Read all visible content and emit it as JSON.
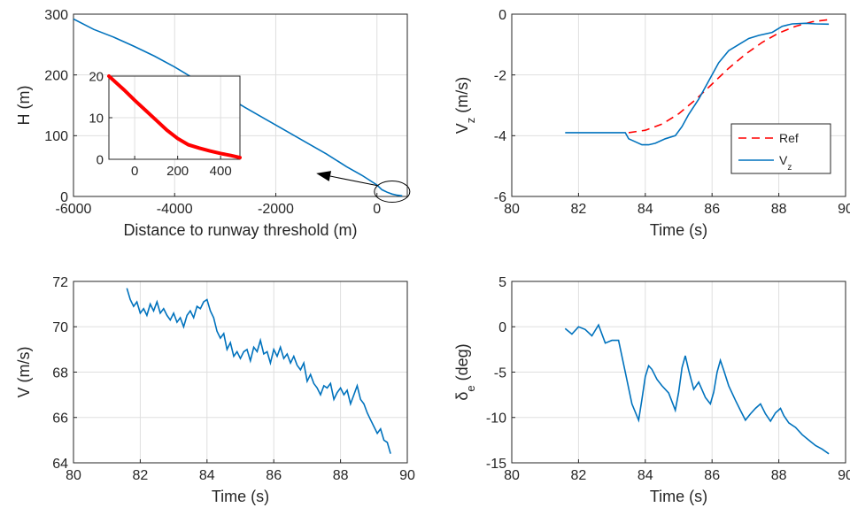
{
  "chart_data": [
    {
      "id": "altitude",
      "type": "line",
      "xlabel": "Distance to runway threshold (m)",
      "ylabel": "H (m)",
      "xlim": [
        -6000,
        600
      ],
      "ylim": [
        0,
        300
      ],
      "xticks": [
        -6000,
        -4000,
        -2000,
        0
      ],
      "yticks": [
        0,
        100,
        200,
        300
      ],
      "grid": true,
      "colors": {
        "main": "#0072bd",
        "inset": "#ff0000"
      },
      "series": [
        {
          "x": [
            -6000,
            -5600,
            -5200,
            -4800,
            -4400,
            -4000,
            -3800,
            -3600,
            -3400,
            -3000,
            -2600,
            -2200,
            -1800,
            -1400,
            -1000,
            -600,
            -300,
            0,
            100,
            200,
            300,
            400,
            500
          ],
          "y": [
            292,
            275,
            262,
            247,
            231,
            213,
            203,
            193,
            185,
            166,
            146,
            127,
            108,
            89,
            70,
            49,
            35,
            19,
            11,
            7,
            4,
            2,
            1
          ]
        }
      ],
      "inset": {
        "xlim": [
          -120,
          490
        ],
        "ylim": [
          0,
          20
        ],
        "xticks": [
          0,
          200,
          400
        ],
        "yticks": [
          0,
          10,
          20
        ],
        "x": [
          -120,
          -50,
          0,
          50,
          100,
          150,
          200,
          250,
          300,
          350,
          400,
          450,
          490
        ],
        "y": [
          20,
          16.7,
          14.2,
          11.8,
          9.4,
          7.0,
          5.0,
          3.5,
          2.7,
          2.0,
          1.4,
          0.9,
          0.4
        ]
      },
      "ellipse_center": [
        300,
        8
      ],
      "arrow_from": [
        0,
        18
      ],
      "arrow_to": [
        -1200,
        38
      ]
    },
    {
      "id": "vz",
      "type": "line",
      "xlabel": "Time (s)",
      "ylabel": "V_z (m/s)",
      "xlim": [
        80,
        90
      ],
      "ylim": [
        -6,
        0
      ],
      "xticks": [
        80,
        82,
        84,
        86,
        88,
        90
      ],
      "yticks": [
        -6,
        -4,
        -2,
        0
      ],
      "grid": true,
      "legend": "right",
      "series": [
        {
          "name": "Ref",
          "color": "#ff0000",
          "dash": true,
          "x": [
            83.5,
            84.0,
            84.5,
            85.0,
            85.5,
            86.0,
            86.5,
            87.0,
            87.5,
            88.0,
            88.5,
            89.0,
            89.5
          ],
          "y": [
            -3.9,
            -3.82,
            -3.62,
            -3.28,
            -2.82,
            -2.3,
            -1.78,
            -1.32,
            -0.93,
            -0.62,
            -0.4,
            -0.25,
            -0.18
          ]
        },
        {
          "name": "V_z",
          "color": "#0072bd",
          "dash": false,
          "x": [
            81.6,
            82.5,
            83.4,
            83.5,
            83.7,
            83.9,
            84.1,
            84.3,
            84.6,
            84.9,
            85.1,
            85.3,
            85.6,
            85.9,
            86.2,
            86.5,
            86.8,
            87.1,
            87.4,
            87.8,
            88.1,
            88.4,
            88.8,
            89.1,
            89.5
          ],
          "y": [
            -3.9,
            -3.9,
            -3.9,
            -4.1,
            -4.2,
            -4.3,
            -4.3,
            -4.25,
            -4.1,
            -4.0,
            -3.7,
            -3.3,
            -2.8,
            -2.2,
            -1.6,
            -1.2,
            -1.0,
            -0.8,
            -0.7,
            -0.6,
            -0.4,
            -0.32,
            -0.3,
            -0.32,
            -0.33
          ]
        }
      ]
    },
    {
      "id": "airspeed",
      "type": "line",
      "xlabel": "Time (s)",
      "ylabel": "V (m/s)",
      "xlim": [
        80,
        90
      ],
      "ylim": [
        64,
        72
      ],
      "xticks": [
        80,
        82,
        84,
        86,
        88,
        90
      ],
      "yticks": [
        64,
        66,
        68,
        70,
        72
      ],
      "grid": true,
      "colors": {
        "main": "#0072bd"
      },
      "series": [
        {
          "x": [
            81.6,
            81.7,
            81.8,
            81.9,
            82.0,
            82.1,
            82.2,
            82.3,
            82.4,
            82.5,
            82.6,
            82.7,
            82.8,
            82.9,
            83.0,
            83.1,
            83.2,
            83.3,
            83.4,
            83.5,
            83.6,
            83.7,
            83.8,
            83.9,
            84.0,
            84.1,
            84.2,
            84.3,
            84.4,
            84.5,
            84.6,
            84.7,
            84.8,
            84.9,
            85.0,
            85.1,
            85.2,
            85.3,
            85.4,
            85.5,
            85.6,
            85.7,
            85.8,
            85.9,
            86.0,
            86.1,
            86.2,
            86.3,
            86.4,
            86.5,
            86.6,
            86.7,
            86.8,
            86.9,
            87.0,
            87.1,
            87.2,
            87.3,
            87.4,
            87.5,
            87.6,
            87.7,
            87.8,
            87.9,
            88.0,
            88.1,
            88.2,
            88.3,
            88.4,
            88.5,
            88.6,
            88.7,
            88.8,
            88.9,
            89.0,
            89.1,
            89.2,
            89.3,
            89.4,
            89.5
          ],
          "y": [
            71.7,
            71.2,
            70.9,
            71.1,
            70.6,
            70.8,
            70.5,
            71.0,
            70.7,
            71.1,
            70.6,
            70.8,
            70.5,
            70.3,
            70.6,
            70.2,
            70.4,
            70.0,
            70.5,
            70.7,
            70.4,
            70.9,
            70.8,
            71.1,
            71.2,
            70.7,
            70.4,
            69.8,
            69.5,
            69.7,
            69.0,
            69.3,
            68.7,
            68.9,
            68.6,
            68.9,
            69.0,
            68.5,
            69.1,
            68.9,
            69.4,
            68.8,
            68.9,
            68.4,
            69.0,
            68.7,
            69.1,
            68.6,
            68.8,
            68.4,
            68.7,
            68.3,
            68.1,
            68.4,
            67.6,
            67.9,
            67.5,
            67.3,
            67.0,
            67.4,
            67.3,
            67.5,
            66.8,
            67.1,
            67.3,
            67.0,
            67.2,
            66.6,
            67.0,
            67.4,
            66.8,
            66.6,
            66.2,
            65.9,
            65.6,
            65.3,
            65.5,
            65.0,
            64.9,
            64.4
          ]
        }
      ]
    },
    {
      "id": "elevator",
      "type": "line",
      "xlabel": "Time (s)",
      "ylabel": "δ_e (deg)",
      "xlim": [
        80,
        90
      ],
      "ylim": [
        -15,
        5
      ],
      "xticks": [
        80,
        82,
        84,
        86,
        88,
        90
      ],
      "yticks": [
        -15,
        -10,
        -5,
        0,
        5
      ],
      "grid": true,
      "colors": {
        "main": "#0072bd"
      },
      "series": [
        {
          "x": [
            81.6,
            81.8,
            82.0,
            82.2,
            82.4,
            82.6,
            82.8,
            83.0,
            83.2,
            83.4,
            83.6,
            83.8,
            83.9,
            84.0,
            84.1,
            84.2,
            84.35,
            84.5,
            84.7,
            84.9,
            85.0,
            85.1,
            85.2,
            85.3,
            85.45,
            85.6,
            85.8,
            85.95,
            86.05,
            86.15,
            86.25,
            86.35,
            86.5,
            86.7,
            86.85,
            87.0,
            87.15,
            87.3,
            87.45,
            87.6,
            87.75,
            87.9,
            88.05,
            88.15,
            88.3,
            88.5,
            88.7,
            88.9,
            89.1,
            89.3,
            89.5
          ],
          "y": [
            -0.2,
            -0.8,
            0.0,
            -0.3,
            -1.0,
            0.2,
            -1.8,
            -1.5,
            -1.5,
            -5.0,
            -8.5,
            -10.3,
            -8.0,
            -5.5,
            -4.3,
            -4.7,
            -5.8,
            -6.5,
            -7.3,
            -9.2,
            -7.2,
            -4.5,
            -3.2,
            -4.8,
            -6.9,
            -6.1,
            -7.8,
            -8.5,
            -7.2,
            -5.0,
            -3.7,
            -4.8,
            -6.5,
            -8.1,
            -9.2,
            -10.3,
            -9.6,
            -9.0,
            -8.5,
            -9.6,
            -10.4,
            -9.5,
            -9.0,
            -9.8,
            -10.6,
            -11.1,
            -11.9,
            -12.5,
            -13.1,
            -13.5,
            -14.0
          ]
        }
      ]
    }
  ]
}
